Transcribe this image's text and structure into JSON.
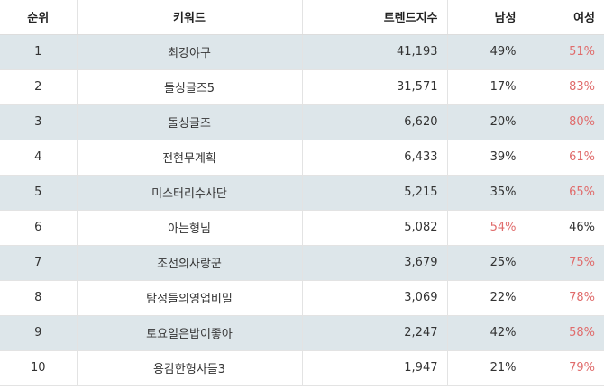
{
  "headers": [
    "순위",
    "키워드",
    "트렌드지수",
    "남성",
    "여성"
  ],
  "colors": {
    "highlight": "#e06c6c",
    "stripe": "#dde6ea"
  },
  "rows": [
    {
      "rank": "1",
      "keyword": "최강야구",
      "trend": "41,193",
      "male": "49%",
      "female": "51%",
      "higher": "female"
    },
    {
      "rank": "2",
      "keyword": "돌싱글즈5",
      "trend": "31,571",
      "male": "17%",
      "female": "83%",
      "higher": "female"
    },
    {
      "rank": "3",
      "keyword": "돌싱글즈",
      "trend": "6,620",
      "male": "20%",
      "female": "80%",
      "higher": "female"
    },
    {
      "rank": "4",
      "keyword": "전현무계획",
      "trend": "6,433",
      "male": "39%",
      "female": "61%",
      "higher": "female"
    },
    {
      "rank": "5",
      "keyword": "미스터리수사단",
      "trend": "5,215",
      "male": "35%",
      "female": "65%",
      "higher": "female"
    },
    {
      "rank": "6",
      "keyword": "아는형님",
      "trend": "5,082",
      "male": "54%",
      "female": "46%",
      "higher": "male"
    },
    {
      "rank": "7",
      "keyword": "조선의사랑꾼",
      "trend": "3,679",
      "male": "25%",
      "female": "75%",
      "higher": "female"
    },
    {
      "rank": "8",
      "keyword": "탐정들의영업비밀",
      "trend": "3,069",
      "male": "22%",
      "female": "78%",
      "higher": "female"
    },
    {
      "rank": "9",
      "keyword": "토요일은밥이좋아",
      "trend": "2,247",
      "male": "42%",
      "female": "58%",
      "higher": "female"
    },
    {
      "rank": "10",
      "keyword": "용감한형사들3",
      "trend": "1,947",
      "male": "21%",
      "female": "79%",
      "higher": "female"
    }
  ]
}
